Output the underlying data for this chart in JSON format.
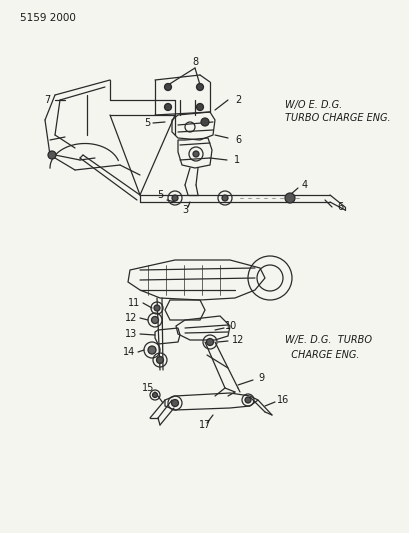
{
  "title": "5159 2000",
  "bg_color": "#f5f5f0",
  "line_color": "#2a2a2a",
  "text_color": "#1a1a1a",
  "top_label1": "W/O E. D.G.",
  "top_label2": "TURBO CHARGE ENG.",
  "bot_label1": "W/E. D.G.  TURBO",
  "bot_label2": "  CHARGE ENG.",
  "figsize": [
    4.1,
    5.33
  ],
  "dpi": 100
}
